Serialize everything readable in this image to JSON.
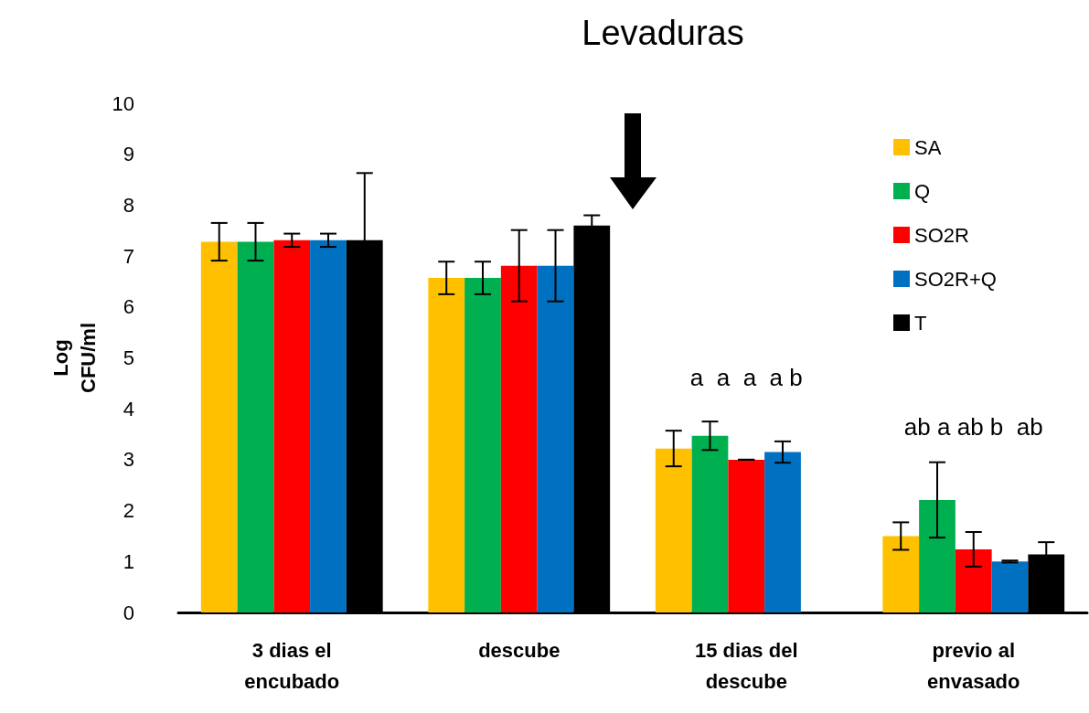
{
  "chart_data": {
    "type": "bar",
    "title": "Levaduras",
    "ylabel": "Log\nCFU/ml",
    "categories": [
      "3 dias el\nencubado",
      "descube",
      "15 dias del\ndescube",
      "previo al\nenvasado"
    ],
    "series": [
      {
        "name": "SA",
        "color": "#ffc000",
        "values": [
          7.28,
          6.57,
          3.22,
          1.5
        ],
        "errors": [
          0.37,
          0.32,
          0.35,
          0.27
        ]
      },
      {
        "name": "Q",
        "color": "#00b050",
        "values": [
          7.28,
          6.57,
          3.47,
          2.21
        ],
        "errors": [
          0.37,
          0.32,
          0.28,
          0.74
        ]
      },
      {
        "name": "SO2R",
        "color": "#ff0000",
        "values": [
          7.31,
          6.81,
          3.0,
          1.24
        ],
        "errors": [
          0.13,
          0.7,
          0,
          0.34
        ]
      },
      {
        "name": "SO2R+Q",
        "color": "#0070c0",
        "values": [
          7.31,
          6.81,
          3.15,
          1.0
        ],
        "errors": [
          0.13,
          0.7,
          0.21,
          0.02
        ]
      },
      {
        "name": "T",
        "color": "#000000",
        "values": [
          7.31,
          7.6,
          null,
          1.14
        ],
        "errors": [
          1.32,
          0.2,
          null,
          0.24
        ]
      }
    ],
    "annotations": [
      "a  a  a  a b",
      "ab a ab b  ab"
    ],
    "ylim": [
      0,
      10
    ],
    "yticks": [
      0,
      1,
      2,
      3,
      4,
      5,
      6,
      7,
      8,
      9,
      10
    ],
    "grid": false,
    "legend": "top right"
  }
}
